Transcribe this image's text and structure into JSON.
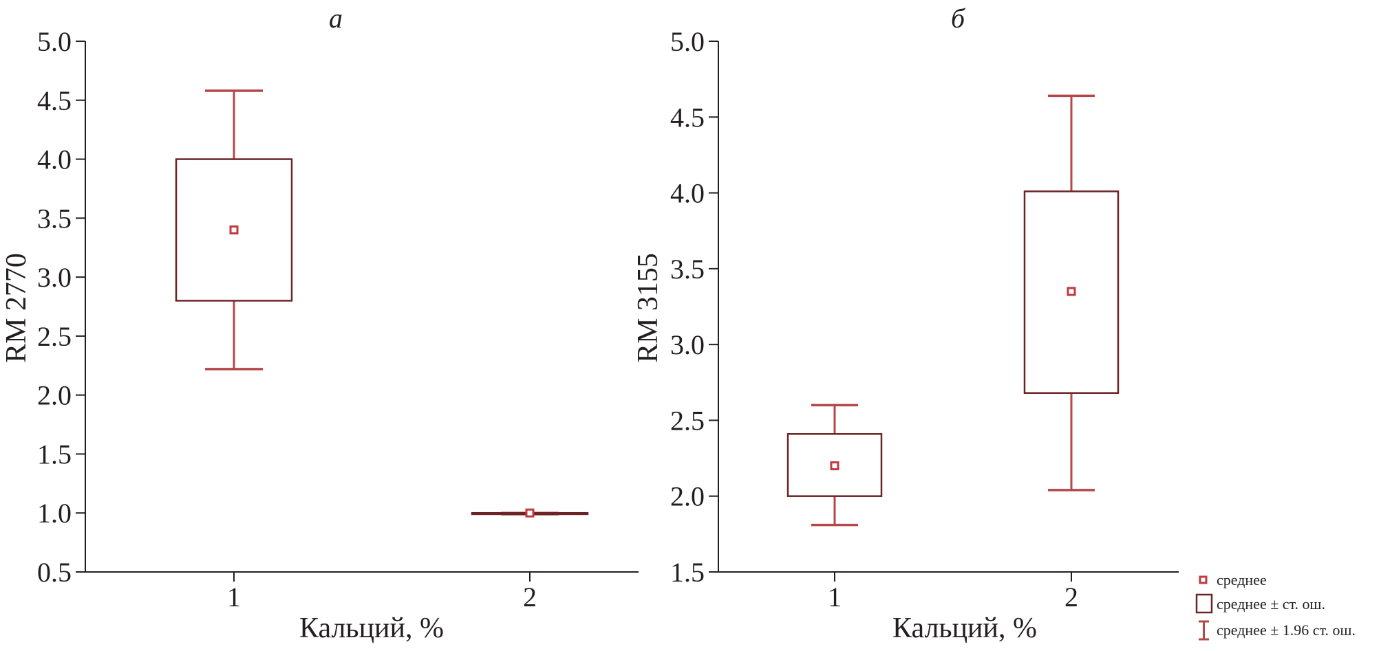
{
  "colors": {
    "axis": "#231f20",
    "box": "#6b2426",
    "whisker": "#b5474b",
    "mean": "#c0393e"
  },
  "chart_data": [
    {
      "type": "box",
      "panel_label": "а",
      "xlabel": "Кальций, %",
      "ylabel": "RM 2770",
      "categories": [
        "1",
        "2"
      ],
      "ylim": [
        0.5,
        5.0
      ],
      "yticks": [
        "0.5",
        "1.0",
        "1.5",
        "2.0",
        "2.5",
        "3.0",
        "3.5",
        "4.0",
        "4.5",
        "5.0"
      ],
      "series": [
        {
          "category": "1",
          "mean": 3.4,
          "se_low": 2.8,
          "se_high": 4.0,
          "ci_low": 2.22,
          "ci_high": 4.58
        },
        {
          "category": "2",
          "mean": 1.0,
          "se_low": 0.99,
          "se_high": 1.0,
          "ci_low": 0.99,
          "ci_high": 1.0
        }
      ]
    },
    {
      "type": "box",
      "panel_label": "б",
      "xlabel": "Кальций, %",
      "ylabel": "RM 3155",
      "categories": [
        "1",
        "2"
      ],
      "ylim": [
        1.5,
        5.0
      ],
      "yticks": [
        "1.5",
        "2.0",
        "2.5",
        "3.0",
        "3.5",
        "4.0",
        "4.5",
        "5.0"
      ],
      "series": [
        {
          "category": "1",
          "mean": 2.2,
          "se_low": 2.0,
          "se_high": 2.41,
          "ci_low": 1.81,
          "ci_high": 2.6
        },
        {
          "category": "2",
          "mean": 3.35,
          "se_low": 2.68,
          "se_high": 4.01,
          "ci_low": 2.04,
          "ci_high": 4.64
        }
      ]
    }
  ],
  "legend": {
    "placement": "bottom-right",
    "items": [
      {
        "icon": "mean-marker-icon",
        "label": "среднее"
      },
      {
        "icon": "box-icon",
        "label": "среднее ± ст. ош."
      },
      {
        "icon": "whisker-icon",
        "label": "среднее ± 1.96 ст. ош."
      }
    ]
  }
}
